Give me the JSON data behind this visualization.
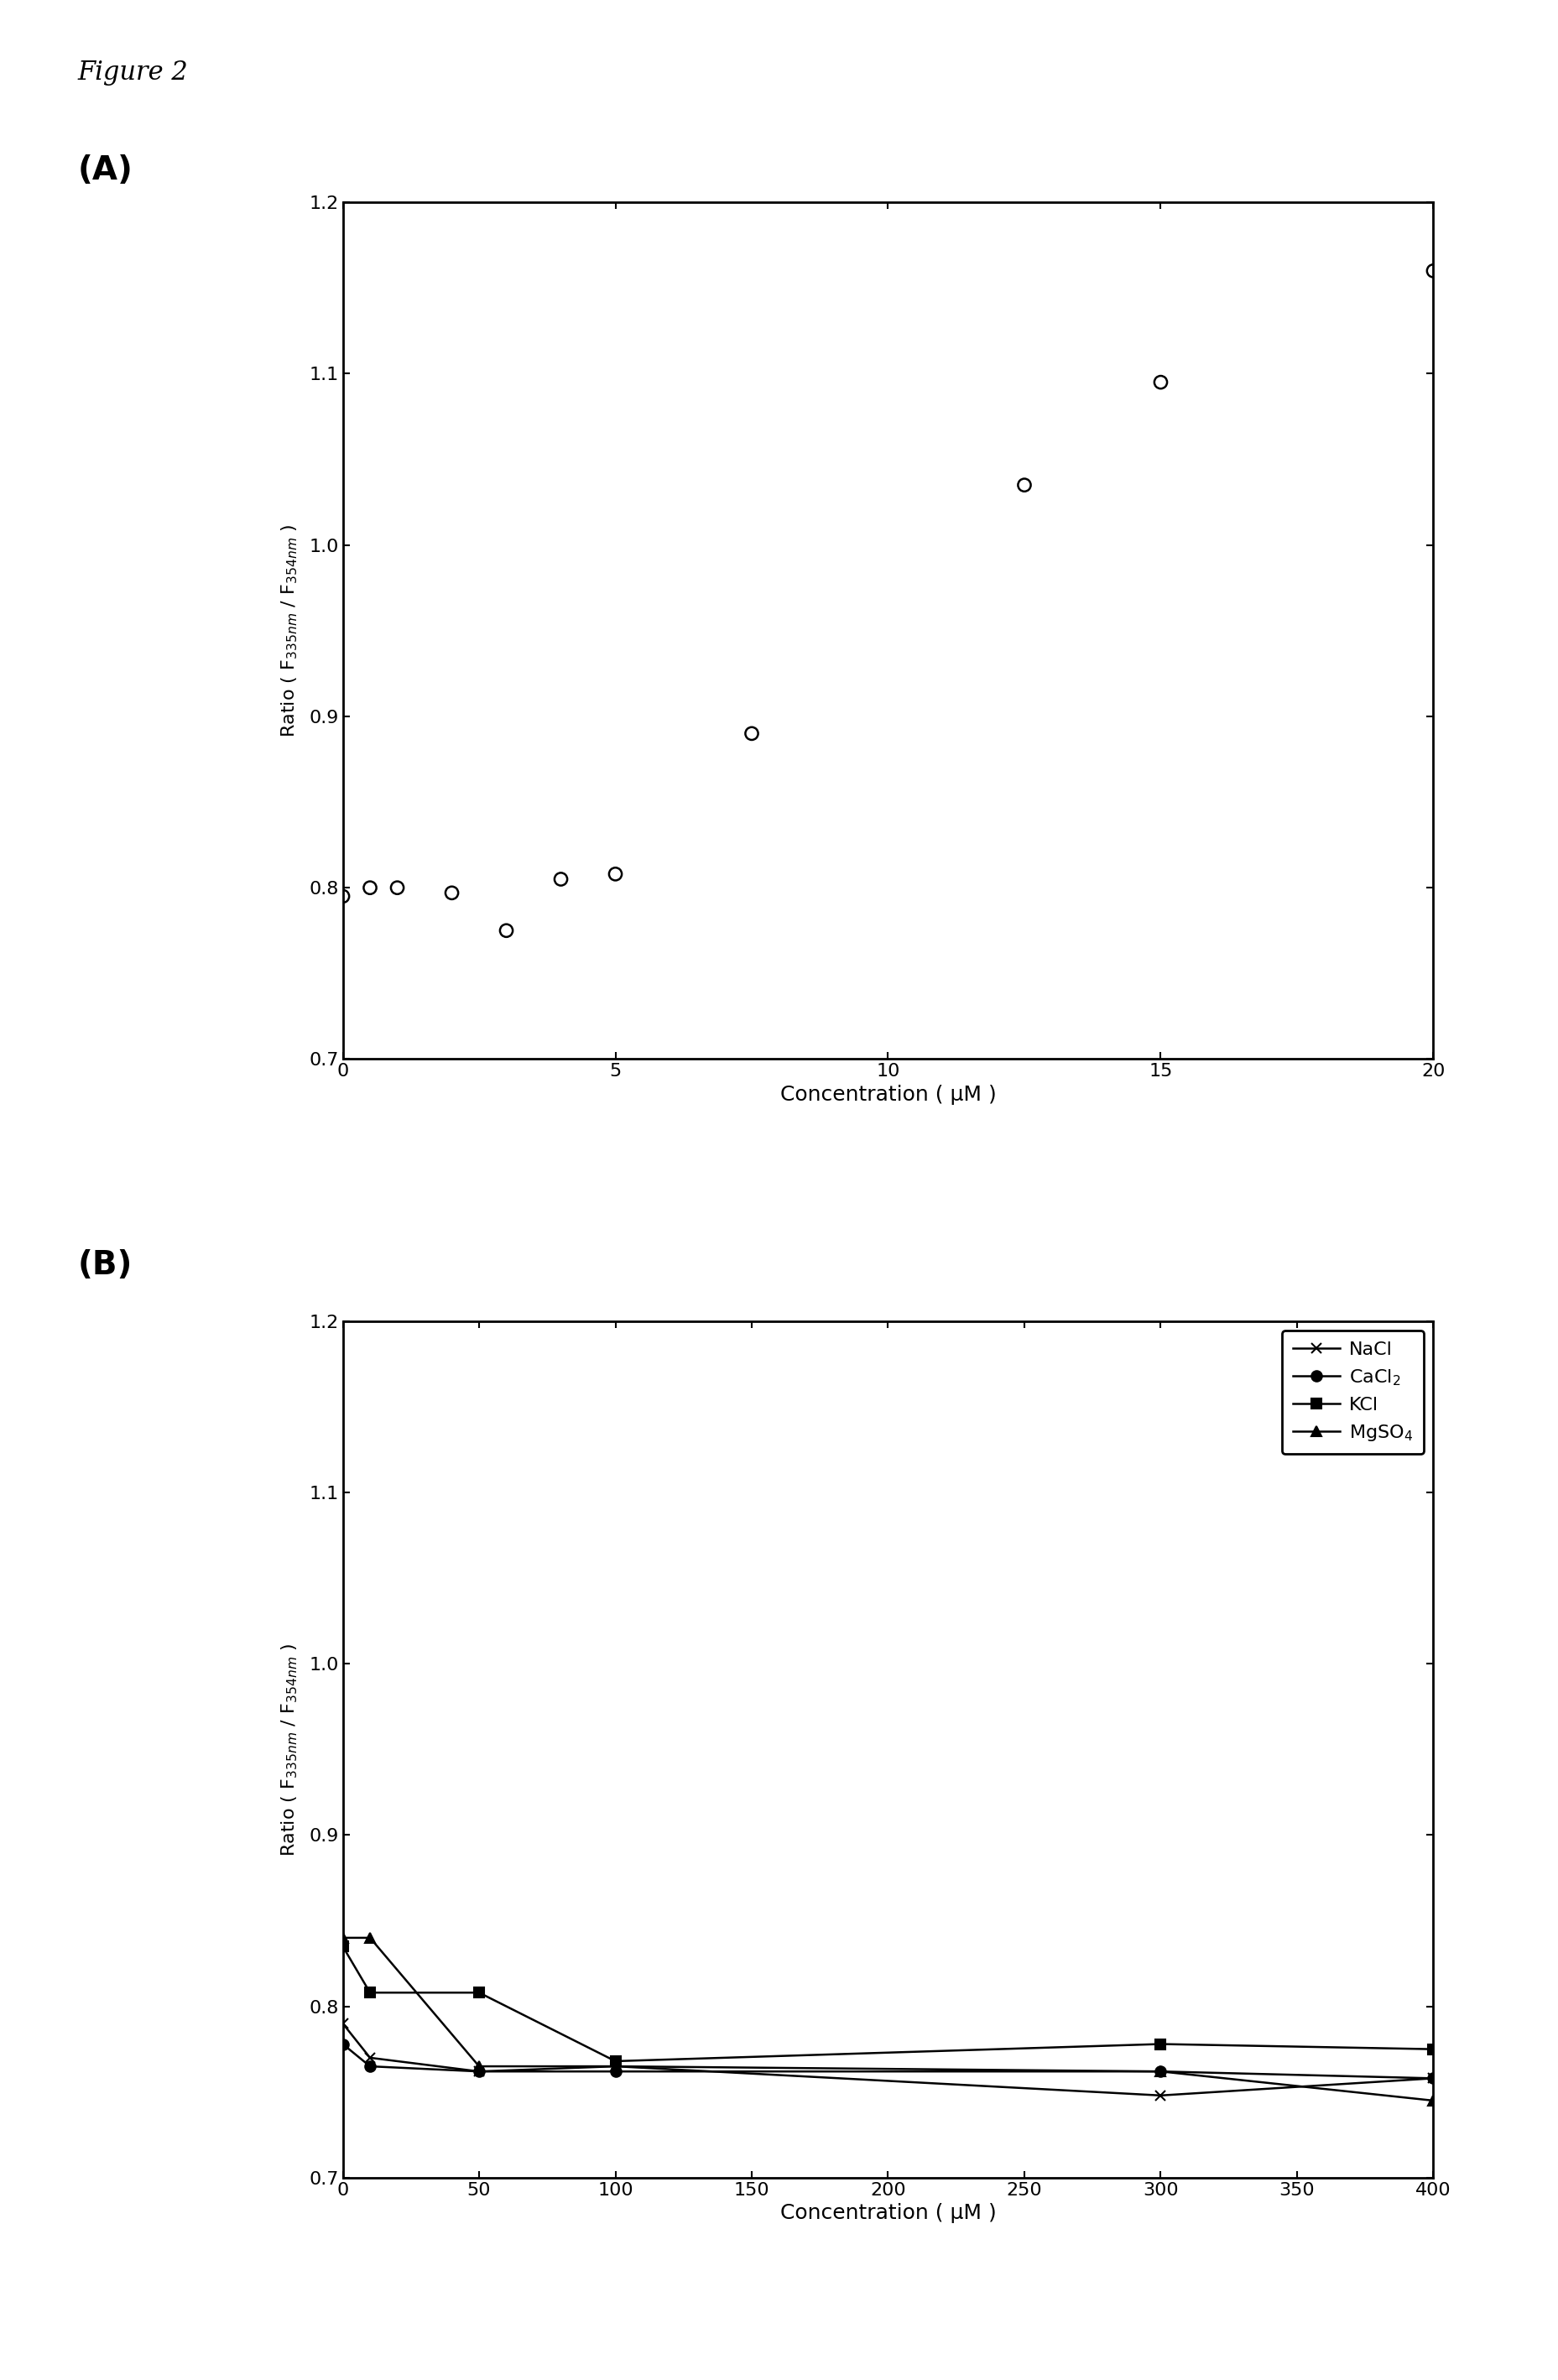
{
  "figure_title": "Figure 2",
  "panel_A": {
    "label": "(A)",
    "x": [
      0,
      0.5,
      1,
      2,
      3,
      4,
      5,
      7.5,
      12.5,
      15,
      20
    ],
    "y": [
      0.795,
      0.8,
      0.8,
      0.797,
      0.775,
      0.805,
      0.808,
      0.89,
      1.035,
      1.095,
      1.16
    ],
    "xlim": [
      0,
      20
    ],
    "ylim": [
      0.7,
      1.2
    ],
    "yticks": [
      0.7,
      0.8,
      0.9,
      1.0,
      1.1,
      1.2
    ],
    "xticks": [
      0,
      5,
      10,
      15,
      20
    ],
    "xlabel": "Concentration ( μM )",
    "ylabel": "Ratio ( F$_{335 nm}$ / F$_{354 nm}$ )"
  },
  "panel_B": {
    "label": "(B)",
    "xlim": [
      0,
      400
    ],
    "ylim": [
      0.7,
      1.2
    ],
    "yticks": [
      0.7,
      0.8,
      0.9,
      1.0,
      1.1,
      1.2
    ],
    "xticks": [
      0,
      50,
      100,
      150,
      200,
      250,
      300,
      350,
      400
    ],
    "xlabel": "Concentration ( μM )",
    "ylabel": "Ratio ( F$_{335 nm}$ / F$_{354 nm}$ )",
    "series": {
      "NaCl": {
        "x": [
          0,
          10,
          50,
          100,
          300,
          400
        ],
        "y": [
          0.79,
          0.77,
          0.762,
          0.765,
          0.748,
          0.758
        ],
        "marker": "x",
        "color": "#000000",
        "linewidth": 1.8,
        "markersize": 9,
        "markerfacecolor": "none",
        "label": "NaCl"
      },
      "CaCl2": {
        "x": [
          0,
          10,
          50,
          100,
          300,
          400
        ],
        "y": [
          0.778,
          0.765,
          0.762,
          0.762,
          0.762,
          0.758
        ],
        "marker": "o",
        "color": "#000000",
        "linewidth": 1.8,
        "markersize": 9,
        "markerfacecolor": "#000000",
        "label": "CaCl$_2$"
      },
      "KCl": {
        "x": [
          0,
          10,
          50,
          100,
          300,
          400
        ],
        "y": [
          0.835,
          0.808,
          0.808,
          0.768,
          0.778,
          0.775
        ],
        "marker": "s",
        "color": "#000000",
        "linewidth": 1.8,
        "markersize": 9,
        "markerfacecolor": "#000000",
        "label": "KCl"
      },
      "MgSO4": {
        "x": [
          0,
          10,
          50,
          100,
          300,
          400
        ],
        "y": [
          0.84,
          0.84,
          0.765,
          0.765,
          0.762,
          0.745
        ],
        "marker": "^",
        "color": "#000000",
        "linewidth": 1.8,
        "markersize": 9,
        "markerfacecolor": "#000000",
        "label": "MgSO$_4$"
      }
    }
  },
  "background_color": "#ffffff",
  "text_color": "#000000"
}
